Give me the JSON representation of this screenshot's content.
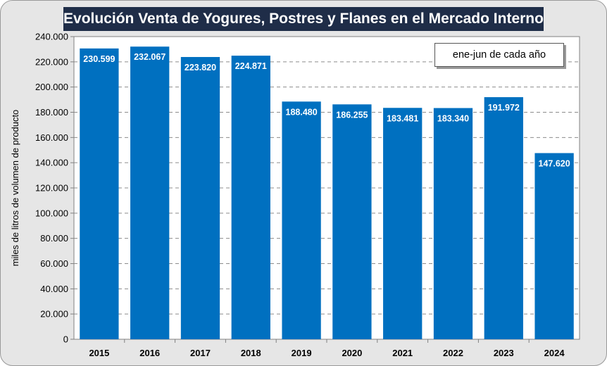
{
  "chart_data": {
    "type": "bar",
    "title": "Evolución Venta de Yogures, Postres y Flanes en el Mercado Interno",
    "annotation": "ene-jun de cada año",
    "ylabel": "miles de litros de volumen de producto",
    "xlabel": "",
    "ylim": [
      0,
      240000
    ],
    "ytick_step": 20000,
    "ytick_labels": [
      "0",
      "20.000",
      "40.000",
      "60.000",
      "80.000",
      "100.000",
      "120.000",
      "140.000",
      "160.000",
      "180.000",
      "200.000",
      "220.000",
      "240.000"
    ],
    "grid": "horizontal dashed",
    "bar_color": "#0070c0",
    "categories": [
      "2015",
      "2016",
      "2017",
      "2018",
      "2019",
      "2020",
      "2021",
      "2022",
      "2023",
      "2024"
    ],
    "values": [
      230599,
      232067,
      223820,
      224871,
      188480,
      186255,
      183481,
      183340,
      191972,
      147620
    ],
    "value_labels": [
      "230.599",
      "232.067",
      "223.820",
      "224.871",
      "188.480",
      "186.255",
      "183.481",
      "183.340",
      "191.972",
      "147.620"
    ]
  }
}
